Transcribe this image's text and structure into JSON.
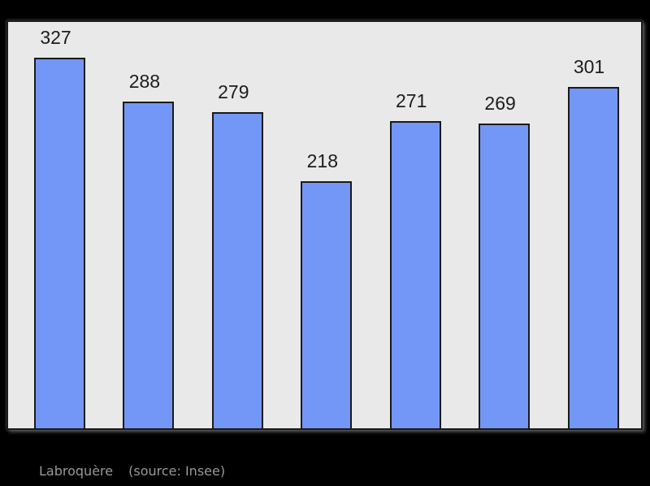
{
  "page": {
    "background_color": "#000000"
  },
  "chart_data": {
    "type": "bar",
    "values": [
      327,
      288,
      279,
      218,
      271,
      269,
      301
    ],
    "bar_value_labels": [
      "327",
      "288",
      "279",
      "218",
      "271",
      "269",
      "301"
    ],
    "title": "",
    "xlabel": "",
    "ylabel": "",
    "ylim": [
      0,
      360
    ],
    "grid": false,
    "legend": null,
    "x_tick_labels_visible": false,
    "bar_color": "#7397f6",
    "bar_border_color": "#1a1a1a",
    "plot_background_color": "#e9e9e9",
    "plot_border_color": "#1a1a1a",
    "value_label_color": "#1c1c1c",
    "caption": {
      "name": "Labroquère",
      "source": "(source: Insee)",
      "color": "#999999"
    }
  }
}
